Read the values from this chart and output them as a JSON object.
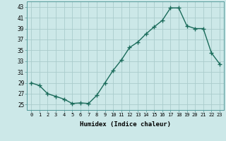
{
  "x": [
    0,
    1,
    2,
    3,
    4,
    5,
    6,
    7,
    8,
    9,
    10,
    11,
    12,
    13,
    14,
    15,
    16,
    17,
    18,
    19,
    20,
    21,
    22,
    23
  ],
  "y": [
    29,
    28.5,
    27,
    26.5,
    26,
    25.2,
    25.3,
    25.2,
    26.7,
    29,
    31.3,
    33.2,
    35.5,
    36.5,
    38,
    39.3,
    40.5,
    42.8,
    42.8,
    39.5,
    39,
    39,
    34.5,
    32.5
  ],
  "xlabel": "Humidex (Indice chaleur)",
  "xlim": [
    -0.5,
    23.5
  ],
  "ylim": [
    24,
    44
  ],
  "yticks": [
    25,
    27,
    29,
    31,
    33,
    35,
    37,
    39,
    41,
    43
  ],
  "xtick_labels": [
    "0",
    "1",
    "2",
    "3",
    "4",
    "5",
    "6",
    "7",
    "8",
    "9",
    "10",
    "11",
    "12",
    "13",
    "14",
    "15",
    "16",
    "17",
    "18",
    "19",
    "20",
    "21",
    "22",
    "23"
  ],
  "line_color": "#1a6b5a",
  "marker": "+",
  "marker_size": 4,
  "bg_color": "#cce8e8",
  "grid_color": "#aacccc",
  "line_width": 1.0
}
